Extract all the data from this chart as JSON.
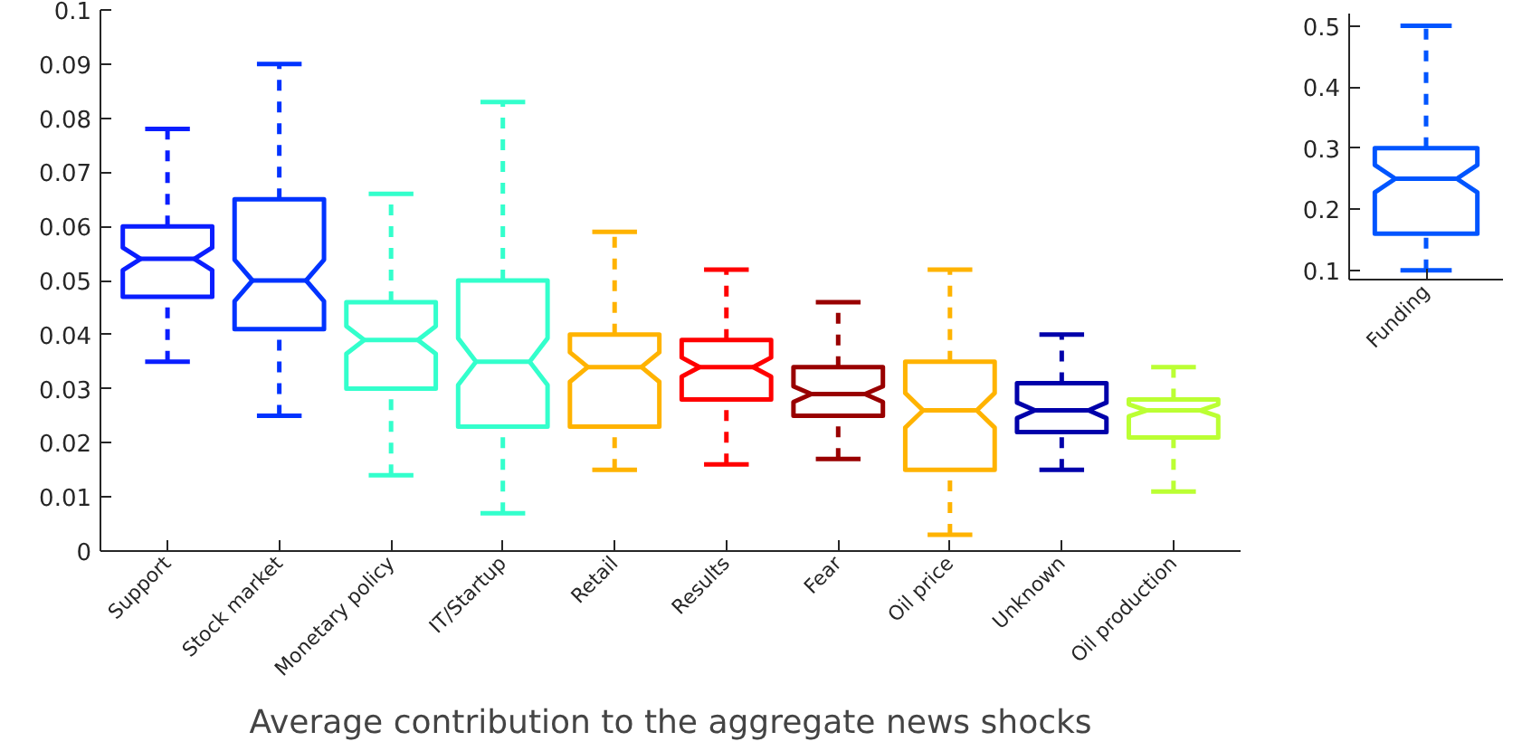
{
  "chart_data": [
    {
      "type": "box",
      "categories": [
        "Support",
        "Stock market",
        "Monetary policy",
        "IT/Startup",
        "Retail",
        "Results",
        "Fear",
        "Oil price",
        "Unknown",
        "Oil production"
      ],
      "colors": [
        "#0a1eff",
        "#0033ff",
        "#33ffcc",
        "#33ffcc",
        "#ffb300",
        "#ff0000",
        "#990000",
        "#ffb300",
        "#0000aa",
        "#bbff33"
      ],
      "boxes": [
        {
          "low": 0.035,
          "q1": 0.047,
          "median": 0.054,
          "q3": 0.06,
          "high": 0.078
        },
        {
          "low": 0.025,
          "q1": 0.041,
          "median": 0.05,
          "q3": 0.065,
          "high": 0.09
        },
        {
          "low": 0.014,
          "q1": 0.03,
          "median": 0.039,
          "q3": 0.046,
          "high": 0.066
        },
        {
          "low": 0.007,
          "q1": 0.023,
          "median": 0.035,
          "q3": 0.05,
          "high": 0.083
        },
        {
          "low": 0.015,
          "q1": 0.023,
          "median": 0.034,
          "q3": 0.04,
          "high": 0.059
        },
        {
          "low": 0.016,
          "q1": 0.028,
          "median": 0.034,
          "q3": 0.039,
          "high": 0.052
        },
        {
          "low": 0.017,
          "q1": 0.025,
          "median": 0.029,
          "q3": 0.034,
          "high": 0.046
        },
        {
          "low": 0.003,
          "q1": 0.015,
          "median": 0.026,
          "q3": 0.035,
          "high": 0.052
        },
        {
          "low": 0.015,
          "q1": 0.022,
          "median": 0.026,
          "q3": 0.031,
          "high": 0.04
        },
        {
          "low": 0.011,
          "q1": 0.021,
          "median": 0.026,
          "q3": 0.028,
          "high": 0.034
        }
      ],
      "ylim": [
        0,
        0.1
      ],
      "yticks": [
        0,
        0.01,
        0.02,
        0.03,
        0.04,
        0.05,
        0.06,
        0.07,
        0.08,
        0.09,
        0.1
      ],
      "xlabel": "Average contribution to the aggregate news shocks"
    },
    {
      "type": "box",
      "categories": [
        "Funding"
      ],
      "colors": [
        "#0055ff"
      ],
      "boxes": [
        {
          "low": 0.1,
          "q1": 0.16,
          "median": 0.25,
          "q3": 0.3,
          "high": 0.5
        }
      ],
      "ylim": [
        0.085,
        0.52
      ],
      "yticks": [
        0.1,
        0.2,
        0.3,
        0.4,
        0.5
      ]
    }
  ]
}
